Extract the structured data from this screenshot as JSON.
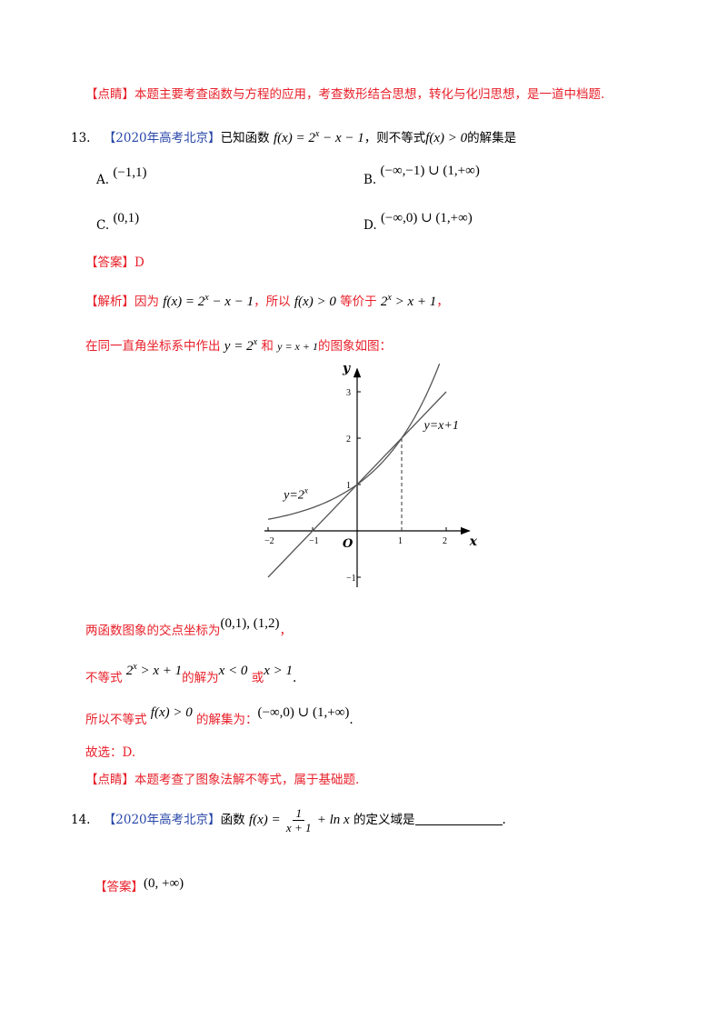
{
  "tip1": {
    "tag": "【点睛】",
    "text": "本题主要考查函数与方程的应用，考查数形结合思想，转化与化归思想，是一道中档题."
  },
  "q13": {
    "num": "13.",
    "source": "【2020年高考北京】",
    "pre": "已知函数",
    "func": "f(x) = 2",
    "func_exp": "x",
    "func_tail": " − x − 1",
    "mid": "，则不等式",
    "ineq": "f(x) > 0",
    "post": "的解集是",
    "options": [
      {
        "label": "A.",
        "value": "(−1,1)"
      },
      {
        "label": "B.",
        "value": "(−∞,−1) ∪ (1,+∞)"
      },
      {
        "label": "C.",
        "value": "(0,1)"
      },
      {
        "label": "D.",
        "value": "(−∞,0) ∪ (1,+∞)"
      }
    ]
  },
  "answer13": {
    "tag": "【答案】",
    "value": "D"
  },
  "analysis": {
    "tag": "【解析】",
    "l1_pre": "因为",
    "l1_f": "f(x) = 2",
    "l1_f_exp": "x",
    "l1_f_tail": " − x − 1",
    "l1_mid": "，所以",
    "l1_ineq": "f(x) > 0",
    "l1_eq": "等价于",
    "l1_ineq2": "2",
    "l1_ineq2_exp": "x",
    "l1_ineq2_tail": " > x + 1",
    "l1_end": "，",
    "l2_pre": "在同一直角坐标系中作出",
    "l2_f1": "y = 2",
    "l2_f1_exp": "x",
    "l2_and": "和",
    "l2_f2": "y = x + 1",
    "l2_post": "的图象如图：",
    "l3_pre": "两函数图象的交点坐标为",
    "l3_pts": "(0,1), (1,2)",
    "l3_end": "，",
    "l4_pre": "不等式",
    "l4_ineq": "2",
    "l4_ineq_exp": "x",
    "l4_ineq_tail": " > x + 1",
    "l4_mid": "的解为",
    "l4_s1": "x < 0",
    "l4_or": "或",
    "l4_s2": "x > 1",
    "l4_end": ".",
    "l5_pre": "所以不等式",
    "l5_ineq": "f(x) > 0",
    "l5_mid": "的解集为：",
    "l5_set": "(−∞,0) ∪ (1,+∞)",
    "l5_end": ".",
    "l6": "故选：D."
  },
  "chart_data": {
    "type": "line",
    "xlabel": "x",
    "ylabel": "y",
    "origin_label": "O",
    "xlim": [
      -2.0,
      2.4
    ],
    "ylim": [
      -1.2,
      3.3
    ],
    "x_ticks": [
      -2,
      -1,
      1,
      2
    ],
    "x_tick_labels": [
      "−2",
      "−1",
      "1",
      "2"
    ],
    "y_ticks": [
      -1,
      1,
      2,
      3
    ],
    "y_tick_labels": [
      "−1",
      "1",
      "2",
      "3"
    ],
    "series": [
      {
        "name": "y=2ˣ",
        "label_main": "y=2",
        "label_exp": "x",
        "function": "2^x",
        "x_range": [
          -2.0,
          1.85
        ]
      },
      {
        "name": "y=x+1",
        "function": "x+1",
        "x_range": [
          -2.0,
          2.0
        ]
      }
    ],
    "guide_line": {
      "x": 1,
      "y_from": 0,
      "y_to": 2,
      "style": "dashed"
    },
    "grid": false
  },
  "tip2": {
    "tag": "【点睛】",
    "text": "本题考查了图象法解不等式，属于基础题."
  },
  "q14": {
    "num": "14.",
    "source": "【2020年高考北京】",
    "pre": "函数",
    "f_lhs": "f(x) =",
    "frac_num": "1",
    "frac_den": "x + 1",
    "f_tail": "+ ln x",
    "post": "的定义域是",
    "end": "."
  },
  "answer14": {
    "tag": "【答案】",
    "value": "(0, +∞)"
  }
}
